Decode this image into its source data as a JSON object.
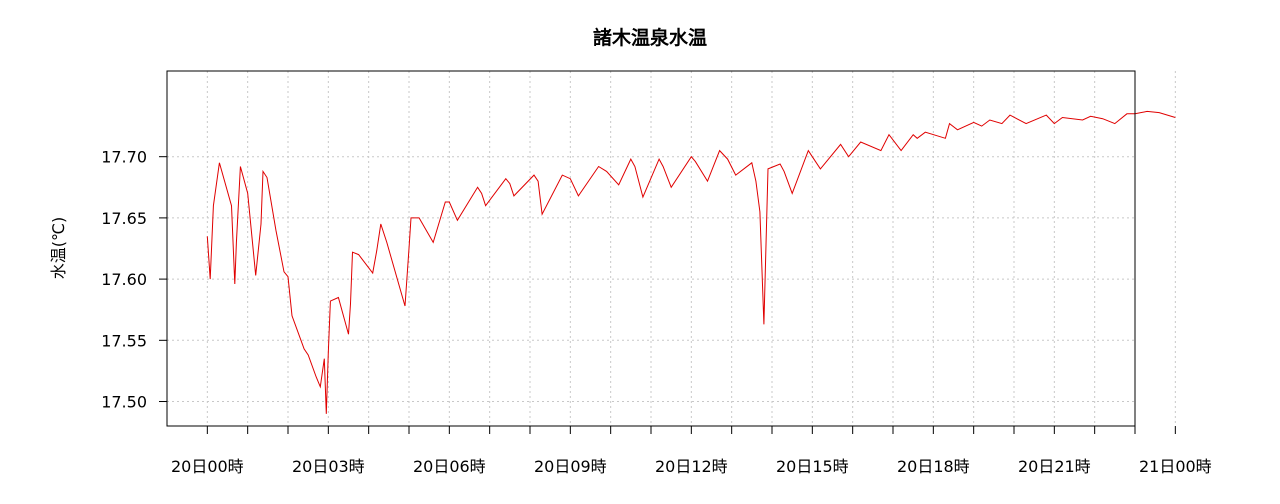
{
  "chart_data": {
    "type": "line",
    "title": "諸木温泉水温",
    "xlabel": "",
    "ylabel": "水温(℃)",
    "x_unit": "hours since 20日00時",
    "xlim": [
      -1,
      23
    ],
    "ylim": [
      17.48,
      17.77
    ],
    "x_ticks": [
      0,
      1,
      2,
      3,
      4,
      5,
      6,
      7,
      8,
      9,
      10,
      11,
      12,
      13,
      14,
      15,
      16,
      17,
      18,
      19,
      20,
      21,
      22,
      23,
      24
    ],
    "x_tick_labels": [
      {
        "x": 0,
        "label": "20日00時"
      },
      {
        "x": 3,
        "label": "20日03時"
      },
      {
        "x": 6,
        "label": "20日06時"
      },
      {
        "x": 9,
        "label": "20日09時"
      },
      {
        "x": 12,
        "label": "20日12時"
      },
      {
        "x": 15,
        "label": "20日15時"
      },
      {
        "x": 18,
        "label": "20日18時"
      },
      {
        "x": 21,
        "label": "20日21時"
      },
      {
        "x": 24,
        "label": "21日00時"
      }
    ],
    "y_ticks": [
      17.5,
      17.55,
      17.6,
      17.65,
      17.7
    ],
    "y_tick_labels": [
      "17.50",
      "17.55",
      "17.60",
      "17.65",
      "17.70"
    ],
    "grid": true,
    "series": [
      {
        "color": "#e00000",
        "x": [
          0.0,
          0.07,
          0.15,
          0.3,
          0.6,
          0.68,
          0.72,
          0.82,
          1.0,
          1.2,
          1.33,
          1.38,
          1.48,
          1.7,
          1.9,
          2.0,
          2.1,
          2.3,
          2.4,
          2.5,
          2.7,
          2.8,
          2.9,
          2.95,
          3.0,
          3.05,
          3.25,
          3.5,
          3.55,
          3.6,
          3.75,
          4.1,
          4.2,
          4.3,
          4.45,
          4.9,
          5.0,
          5.05,
          5.25,
          5.6,
          5.9,
          6.0,
          6.2,
          6.7,
          6.8,
          6.9,
          7.4,
          7.5,
          7.6,
          8.1,
          8.2,
          8.3,
          8.8,
          9.0,
          9.2,
          9.7,
          9.9,
          10.2,
          10.5,
          10.6,
          10.8,
          11.2,
          11.3,
          11.5,
          12.0,
          12.1,
          12.4,
          12.7,
          12.9,
          13.1,
          13.5,
          13.6,
          13.7,
          13.8,
          13.9,
          14.2,
          14.3,
          14.5,
          14.9,
          15.0,
          15.2,
          15.7,
          15.9,
          16.2,
          16.7,
          16.9,
          17.2,
          17.5,
          17.6,
          17.8,
          18.3,
          18.4,
          18.6,
          19.0,
          19.2,
          19.4,
          19.7,
          19.9,
          20.3,
          20.8,
          21.0,
          21.2,
          21.7,
          21.9,
          22.2,
          22.5,
          22.8,
          23.0,
          23.3,
          23.6,
          24.0
        ],
        "y": [
          17.635,
          17.6,
          17.66,
          17.695,
          17.66,
          17.596,
          17.63,
          17.692,
          17.67,
          17.603,
          17.645,
          17.688,
          17.683,
          17.64,
          17.606,
          17.602,
          17.57,
          17.552,
          17.543,
          17.538,
          17.52,
          17.512,
          17.535,
          17.49,
          17.54,
          17.582,
          17.585,
          17.555,
          17.58,
          17.622,
          17.62,
          17.605,
          17.623,
          17.645,
          17.63,
          17.578,
          17.625,
          17.65,
          17.65,
          17.63,
          17.663,
          17.663,
          17.648,
          17.675,
          17.67,
          17.66,
          17.682,
          17.678,
          17.668,
          17.685,
          17.68,
          17.653,
          17.685,
          17.682,
          17.668,
          17.692,
          17.688,
          17.677,
          17.698,
          17.692,
          17.667,
          17.698,
          17.692,
          17.675,
          17.7,
          17.696,
          17.68,
          17.705,
          17.698,
          17.685,
          17.695,
          17.68,
          17.655,
          17.563,
          17.69,
          17.694,
          17.688,
          17.67,
          17.705,
          17.7,
          17.69,
          17.71,
          17.7,
          17.712,
          17.705,
          17.718,
          17.705,
          17.718,
          17.715,
          17.72,
          17.715,
          17.727,
          17.722,
          17.728,
          17.725,
          17.73,
          17.727,
          17.734,
          17.727,
          17.734,
          17.727,
          17.732,
          17.73,
          17.733,
          17.731,
          17.727,
          17.735,
          17.735,
          17.737,
          17.736,
          17.732
        ]
      }
    ]
  }
}
